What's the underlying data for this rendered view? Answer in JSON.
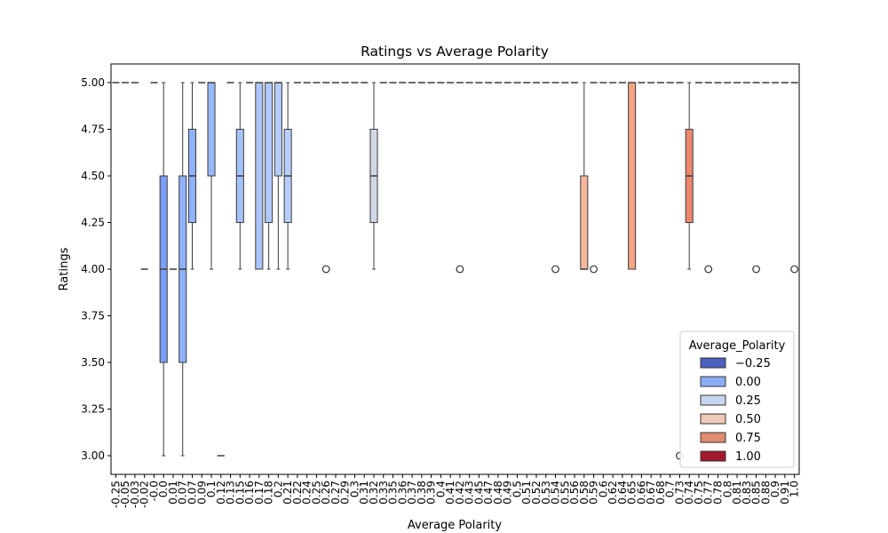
{
  "chart_data": {
    "type": "box",
    "title": "Ratings vs Average Polarity",
    "xlabel": "Average Polarity",
    "ylabel": "Ratings",
    "ylim": [
      2.9,
      5.1
    ],
    "yticks": [
      "3.00",
      "3.25",
      "3.50",
      "3.75",
      "4.00",
      "4.25",
      "4.50",
      "4.75",
      "5.00"
    ],
    "categories": [
      "-0.25",
      "-0.05",
      "-0.03",
      "-0.02",
      "-0.0",
      "0.0",
      "0.01",
      "0.07",
      "0.07",
      "0.09",
      "0.1",
      "0.12",
      "0.13",
      "0.15",
      "0.16",
      "0.17",
      "0.18",
      "0.2",
      "0.21",
      "0.22",
      "0.24",
      "0.25",
      "0.26",
      "0.27",
      "0.29",
      "0.3",
      "0.31",
      "0.32",
      "0.33",
      "0.35",
      "0.36",
      "0.37",
      "0.38",
      "0.39",
      "0.4",
      "0.41",
      "0.42",
      "0.43",
      "0.45",
      "0.47",
      "0.48",
      "0.49",
      "0.5",
      "0.51",
      "0.52",
      "0.53",
      "0.54",
      "0.55",
      "0.56",
      "0.58",
      "0.59",
      "0.6",
      "0.62",
      "0.64",
      "0.65",
      "0.66",
      "0.67",
      "0.68",
      "0.7",
      "0.73",
      "0.74",
      "0.75",
      "0.77",
      "0.78",
      "0.8",
      "0.81",
      "0.83",
      "0.85",
      "0.88",
      "0.9",
      "0.91",
      "1.0"
    ],
    "hue_values": [
      -0.25,
      -0.05,
      -0.03,
      -0.02,
      -0.004,
      0.0,
      0.01,
      0.067,
      0.073,
      0.09,
      0.1,
      0.12,
      0.13,
      0.15,
      0.16,
      0.17,
      0.18,
      0.2,
      0.21,
      0.22,
      0.24,
      0.25,
      0.26,
      0.27,
      0.29,
      0.3,
      0.31,
      0.32,
      0.33,
      0.35,
      0.36,
      0.37,
      0.38,
      0.39,
      0.4,
      0.41,
      0.42,
      0.43,
      0.45,
      0.47,
      0.48,
      0.49,
      0.5,
      0.51,
      0.52,
      0.53,
      0.54,
      0.55,
      0.56,
      0.58,
      0.59,
      0.6,
      0.62,
      0.64,
      0.65,
      0.66,
      0.67,
      0.68,
      0.7,
      0.73,
      0.74,
      0.75,
      0.77,
      0.78,
      0.8,
      0.81,
      0.83,
      0.85,
      0.88,
      0.9,
      0.91,
      1.0
    ],
    "boxes": [
      {
        "index": 0,
        "q1": 5.0,
        "median": 5.0,
        "q3": 5.0,
        "wl": 5.0,
        "wh": 5.0,
        "outliers": []
      },
      {
        "index": 1,
        "q1": 5.0,
        "median": 5.0,
        "q3": 5.0,
        "wl": 5.0,
        "wh": 5.0,
        "outliers": []
      },
      {
        "index": 2,
        "q1": 5.0,
        "median": 5.0,
        "q3": 5.0,
        "wl": 5.0,
        "wh": 5.0,
        "outliers": []
      },
      {
        "index": 3,
        "q1": 4.0,
        "median": 4.0,
        "q3": 4.0,
        "wl": 4.0,
        "wh": 4.0,
        "outliers": []
      },
      {
        "index": 4,
        "q1": 5.0,
        "median": 5.0,
        "q3": 5.0,
        "wl": 5.0,
        "wh": 5.0,
        "outliers": []
      },
      {
        "index": 5,
        "q1": 3.5,
        "median": 4.0,
        "q3": 4.5,
        "wl": 3.0,
        "wh": 5.0,
        "outliers": []
      },
      {
        "index": 6,
        "q1": 4.0,
        "median": 4.0,
        "q3": 4.0,
        "wl": 4.0,
        "wh": 4.0,
        "outliers": []
      },
      {
        "index": 7,
        "q1": 3.5,
        "median": 4.0,
        "q3": 4.5,
        "wl": 3.0,
        "wh": 5.0,
        "outliers": []
      },
      {
        "index": 8,
        "q1": 4.25,
        "median": 4.5,
        "q3": 4.75,
        "wl": 4.0,
        "wh": 5.0,
        "outliers": []
      },
      {
        "index": 9,
        "q1": 5.0,
        "median": 5.0,
        "q3": 5.0,
        "wl": 5.0,
        "wh": 5.0,
        "outliers": []
      },
      {
        "index": 10,
        "q1": 4.5,
        "median": 5.0,
        "q3": 5.0,
        "wl": 4.0,
        "wh": 5.0,
        "outliers": []
      },
      {
        "index": 11,
        "q1": 3.0,
        "median": 3.0,
        "q3": 3.0,
        "wl": 3.0,
        "wh": 3.0,
        "outliers": []
      },
      {
        "index": 12,
        "q1": 5.0,
        "median": 5.0,
        "q3": 5.0,
        "wl": 5.0,
        "wh": 5.0,
        "outliers": []
      },
      {
        "index": 13,
        "q1": 4.25,
        "median": 4.5,
        "q3": 4.75,
        "wl": 4.0,
        "wh": 5.0,
        "outliers": []
      },
      {
        "index": 14,
        "q1": 5.0,
        "median": 5.0,
        "q3": 5.0,
        "wl": 5.0,
        "wh": 5.0,
        "outliers": []
      },
      {
        "index": 15,
        "q1": 4.0,
        "median": 5.0,
        "q3": 5.0,
        "wl": 4.0,
        "wh": 5.0,
        "outliers": []
      },
      {
        "index": 16,
        "q1": 4.25,
        "median": 5.0,
        "q3": 5.0,
        "wl": 4.0,
        "wh": 5.0,
        "outliers": []
      },
      {
        "index": 17,
        "q1": 4.5,
        "median": 5.0,
        "q3": 5.0,
        "wl": 4.0,
        "wh": 5.0,
        "outliers": []
      },
      {
        "index": 18,
        "q1": 4.25,
        "median": 4.5,
        "q3": 4.75,
        "wl": 4.0,
        "wh": 5.0,
        "outliers": []
      },
      {
        "index": 19,
        "q1": 5.0,
        "median": 5.0,
        "q3": 5.0,
        "wl": 5.0,
        "wh": 5.0,
        "outliers": []
      },
      {
        "index": 20,
        "q1": 5.0,
        "median": 5.0,
        "q3": 5.0,
        "wl": 5.0,
        "wh": 5.0,
        "outliers": []
      },
      {
        "index": 21,
        "q1": 5.0,
        "median": 5.0,
        "q3": 5.0,
        "wl": 5.0,
        "wh": 5.0,
        "outliers": []
      },
      {
        "index": 22,
        "q1": 5.0,
        "median": 5.0,
        "q3": 5.0,
        "wl": 5.0,
        "wh": 5.0,
        "outliers": [
          4.0
        ]
      },
      {
        "index": 23,
        "q1": 5.0,
        "median": 5.0,
        "q3": 5.0,
        "wl": 5.0,
        "wh": 5.0,
        "outliers": []
      },
      {
        "index": 24,
        "q1": 5.0,
        "median": 5.0,
        "q3": 5.0,
        "wl": 5.0,
        "wh": 5.0,
        "outliers": []
      },
      {
        "index": 25,
        "q1": 5.0,
        "median": 5.0,
        "q3": 5.0,
        "wl": 5.0,
        "wh": 5.0,
        "outliers": []
      },
      {
        "index": 26,
        "q1": 5.0,
        "median": 5.0,
        "q3": 5.0,
        "wl": 5.0,
        "wh": 5.0,
        "outliers": []
      },
      {
        "index": 27,
        "q1": 4.25,
        "median": 4.5,
        "q3": 4.75,
        "wl": 4.0,
        "wh": 5.0,
        "outliers": []
      },
      {
        "index": 28,
        "q1": 5.0,
        "median": 5.0,
        "q3": 5.0,
        "wl": 5.0,
        "wh": 5.0,
        "outliers": []
      },
      {
        "index": 29,
        "q1": 5.0,
        "median": 5.0,
        "q3": 5.0,
        "wl": 5.0,
        "wh": 5.0,
        "outliers": []
      },
      {
        "index": 30,
        "q1": 5.0,
        "median": 5.0,
        "q3": 5.0,
        "wl": 5.0,
        "wh": 5.0,
        "outliers": []
      },
      {
        "index": 31,
        "q1": 5.0,
        "median": 5.0,
        "q3": 5.0,
        "wl": 5.0,
        "wh": 5.0,
        "outliers": []
      },
      {
        "index": 32,
        "q1": 5.0,
        "median": 5.0,
        "q3": 5.0,
        "wl": 5.0,
        "wh": 5.0,
        "outliers": []
      },
      {
        "index": 33,
        "q1": 5.0,
        "median": 5.0,
        "q3": 5.0,
        "wl": 5.0,
        "wh": 5.0,
        "outliers": []
      },
      {
        "index": 34,
        "q1": 5.0,
        "median": 5.0,
        "q3": 5.0,
        "wl": 5.0,
        "wh": 5.0,
        "outliers": []
      },
      {
        "index": 35,
        "q1": 5.0,
        "median": 5.0,
        "q3": 5.0,
        "wl": 5.0,
        "wh": 5.0,
        "outliers": []
      },
      {
        "index": 36,
        "q1": 5.0,
        "median": 5.0,
        "q3": 5.0,
        "wl": 5.0,
        "wh": 5.0,
        "outliers": [
          4.0
        ]
      },
      {
        "index": 37,
        "q1": 5.0,
        "median": 5.0,
        "q3": 5.0,
        "wl": 5.0,
        "wh": 5.0,
        "outliers": []
      },
      {
        "index": 38,
        "q1": 5.0,
        "median": 5.0,
        "q3": 5.0,
        "wl": 5.0,
        "wh": 5.0,
        "outliers": []
      },
      {
        "index": 39,
        "q1": 5.0,
        "median": 5.0,
        "q3": 5.0,
        "wl": 5.0,
        "wh": 5.0,
        "outliers": []
      },
      {
        "index": 40,
        "q1": 5.0,
        "median": 5.0,
        "q3": 5.0,
        "wl": 5.0,
        "wh": 5.0,
        "outliers": []
      },
      {
        "index": 41,
        "q1": 5.0,
        "median": 5.0,
        "q3": 5.0,
        "wl": 5.0,
        "wh": 5.0,
        "outliers": []
      },
      {
        "index": 42,
        "q1": 5.0,
        "median": 5.0,
        "q3": 5.0,
        "wl": 5.0,
        "wh": 5.0,
        "outliers": []
      },
      {
        "index": 43,
        "q1": 5.0,
        "median": 5.0,
        "q3": 5.0,
        "wl": 5.0,
        "wh": 5.0,
        "outliers": []
      },
      {
        "index": 44,
        "q1": 5.0,
        "median": 5.0,
        "q3": 5.0,
        "wl": 5.0,
        "wh": 5.0,
        "outliers": []
      },
      {
        "index": 45,
        "q1": 5.0,
        "median": 5.0,
        "q3": 5.0,
        "wl": 5.0,
        "wh": 5.0,
        "outliers": []
      },
      {
        "index": 46,
        "q1": 5.0,
        "median": 5.0,
        "q3": 5.0,
        "wl": 5.0,
        "wh": 5.0,
        "outliers": [
          4.0
        ]
      },
      {
        "index": 47,
        "q1": 5.0,
        "median": 5.0,
        "q3": 5.0,
        "wl": 5.0,
        "wh": 5.0,
        "outliers": []
      },
      {
        "index": 48,
        "q1": 5.0,
        "median": 5.0,
        "q3": 5.0,
        "wl": 5.0,
        "wh": 5.0,
        "outliers": []
      },
      {
        "index": 49,
        "q1": 4.0,
        "median": 4.0,
        "q3": 4.5,
        "wl": 4.0,
        "wh": 5.0,
        "outliers": []
      },
      {
        "index": 50,
        "q1": 5.0,
        "median": 5.0,
        "q3": 5.0,
        "wl": 5.0,
        "wh": 5.0,
        "outliers": [
          4.0
        ]
      },
      {
        "index": 51,
        "q1": 5.0,
        "median": 5.0,
        "q3": 5.0,
        "wl": 5.0,
        "wh": 5.0,
        "outliers": []
      },
      {
        "index": 52,
        "q1": 5.0,
        "median": 5.0,
        "q3": 5.0,
        "wl": 5.0,
        "wh": 5.0,
        "outliers": []
      },
      {
        "index": 53,
        "q1": 5.0,
        "median": 5.0,
        "q3": 5.0,
        "wl": 5.0,
        "wh": 5.0,
        "outliers": []
      },
      {
        "index": 54,
        "q1": 4.0,
        "median": 5.0,
        "q3": 5.0,
        "wl": 4.0,
        "wh": 5.0,
        "outliers": []
      },
      {
        "index": 55,
        "q1": 5.0,
        "median": 5.0,
        "q3": 5.0,
        "wl": 5.0,
        "wh": 5.0,
        "outliers": []
      },
      {
        "index": 56,
        "q1": 5.0,
        "median": 5.0,
        "q3": 5.0,
        "wl": 5.0,
        "wh": 5.0,
        "outliers": []
      },
      {
        "index": 57,
        "q1": 5.0,
        "median": 5.0,
        "q3": 5.0,
        "wl": 5.0,
        "wh": 5.0,
        "outliers": []
      },
      {
        "index": 58,
        "q1": 5.0,
        "median": 5.0,
        "q3": 5.0,
        "wl": 5.0,
        "wh": 5.0,
        "outliers": []
      },
      {
        "index": 59,
        "q1": 5.0,
        "median": 5.0,
        "q3": 5.0,
        "wl": 5.0,
        "wh": 5.0,
        "outliers": [
          3.0
        ]
      },
      {
        "index": 60,
        "q1": 4.25,
        "median": 4.5,
        "q3": 4.75,
        "wl": 4.0,
        "wh": 5.0,
        "outliers": []
      },
      {
        "index": 61,
        "q1": 5.0,
        "median": 5.0,
        "q3": 5.0,
        "wl": 5.0,
        "wh": 5.0,
        "outliers": []
      },
      {
        "index": 62,
        "q1": 5.0,
        "median": 5.0,
        "q3": 5.0,
        "wl": 5.0,
        "wh": 5.0,
        "outliers": [
          4.0
        ]
      },
      {
        "index": 63,
        "q1": 5.0,
        "median": 5.0,
        "q3": 5.0,
        "wl": 5.0,
        "wh": 5.0,
        "outliers": []
      },
      {
        "index": 64,
        "q1": 5.0,
        "median": 5.0,
        "q3": 5.0,
        "wl": 5.0,
        "wh": 5.0,
        "outliers": []
      },
      {
        "index": 65,
        "q1": 5.0,
        "median": 5.0,
        "q3": 5.0,
        "wl": 5.0,
        "wh": 5.0,
        "outliers": []
      },
      {
        "index": 66,
        "q1": 5.0,
        "median": 5.0,
        "q3": 5.0,
        "wl": 5.0,
        "wh": 5.0,
        "outliers": []
      },
      {
        "index": 67,
        "q1": 5.0,
        "median": 5.0,
        "q3": 5.0,
        "wl": 5.0,
        "wh": 5.0,
        "outliers": [
          4.0
        ]
      },
      {
        "index": 68,
        "q1": 5.0,
        "median": 5.0,
        "q3": 5.0,
        "wl": 5.0,
        "wh": 5.0,
        "outliers": []
      },
      {
        "index": 69,
        "q1": 5.0,
        "median": 5.0,
        "q3": 5.0,
        "wl": 5.0,
        "wh": 5.0,
        "outliers": []
      },
      {
        "index": 70,
        "q1": 5.0,
        "median": 5.0,
        "q3": 5.0,
        "wl": 5.0,
        "wh": 5.0,
        "outliers": []
      },
      {
        "index": 71,
        "q1": 5.0,
        "median": 5.0,
        "q3": 5.0,
        "wl": 5.0,
        "wh": 5.0,
        "outliers": [
          4.0
        ]
      }
    ],
    "legend": {
      "title": "Average_Polarity",
      "placement": "lower-right",
      "entries": [
        {
          "label": "−0.25",
          "color": "#4b5fc0"
        },
        {
          "label": "0.00",
          "color": "#8badf9"
        },
        {
          "label": "0.25",
          "color": "#c6d6ef"
        },
        {
          "label": "0.50",
          "color": "#edc9b7"
        },
        {
          "label": "0.75",
          "color": "#e08b72"
        },
        {
          "label": "1.00",
          "color": "#a2192c"
        }
      ]
    }
  }
}
